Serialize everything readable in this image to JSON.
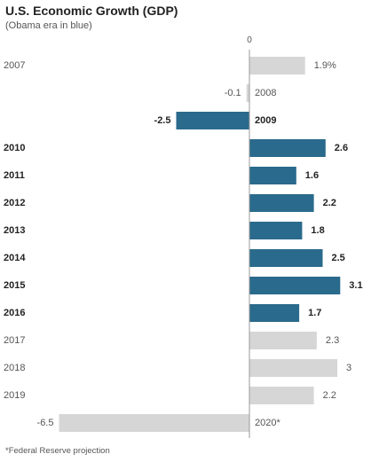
{
  "chart_data": {
    "type": "bar",
    "orientation": "horizontal",
    "title": "U.S. Economic Growth (GDP)",
    "subtitle": "(Obama era in blue)",
    "footnote": "*Federal Reserve projection",
    "zero_label": "0",
    "categories": [
      "2007",
      "2008",
      "2009",
      "2010",
      "2011",
      "2012",
      "2013",
      "2014",
      "2015",
      "2016",
      "2017",
      "2018",
      "2019",
      "2020*"
    ],
    "values": [
      1.9,
      -0.1,
      -2.5,
      2.6,
      1.6,
      2.2,
      1.8,
      2.5,
      3.1,
      1.7,
      2.3,
      3.0,
      2.2,
      -6.5
    ],
    "value_labels": [
      "1.9%",
      "-0.1",
      "-2.5",
      "2.6",
      "1.6",
      "2.2",
      "1.8",
      "2.5",
      "3.1",
      "1.7",
      "2.3",
      "3",
      "2.2",
      "-6.5"
    ],
    "highlighted": [
      false,
      false,
      true,
      true,
      true,
      true,
      true,
      true,
      true,
      true,
      false,
      false,
      false,
      false
    ],
    "colors": {
      "highlight": "#2a6a8c",
      "default": "#d6d6d6",
      "axis": "#999999"
    }
  }
}
